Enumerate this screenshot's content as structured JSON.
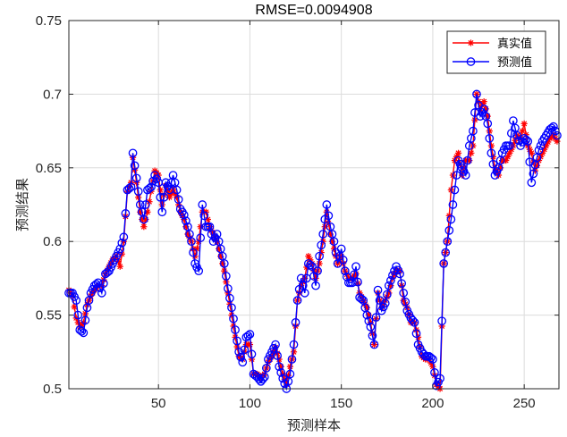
{
  "chart_data": {
    "type": "line",
    "title": "RMSE=0.0094908",
    "xlabel": "预测样本",
    "ylabel": "预测结果",
    "xlim": [
      1,
      269
    ],
    "ylim": [
      0.5,
      0.75
    ],
    "xticks": [
      50,
      100,
      150,
      200,
      250
    ],
    "yticks": [
      0.5,
      0.55,
      0.6,
      0.65,
      0.7,
      0.75
    ],
    "xtick_labels": [
      "50",
      "100",
      "150",
      "200",
      "250"
    ],
    "ytick_labels": [
      "0.5",
      "0.55",
      "0.6",
      "0.65",
      "0.7",
      "0.75"
    ],
    "grid": true,
    "legend_position": "top-right",
    "series": [
      {
        "name": "真实值",
        "color": "#ff0000",
        "marker": "asterisk",
        "keypoints": [
          [
            1,
            0.567
          ],
          [
            3,
            0.563
          ],
          [
            5,
            0.548
          ],
          [
            7,
            0.542
          ],
          [
            9,
            0.545
          ],
          [
            11,
            0.557
          ],
          [
            13,
            0.563
          ],
          [
            15,
            0.567
          ],
          [
            17,
            0.57
          ],
          [
            19,
            0.57
          ],
          [
            21,
            0.578
          ],
          [
            23,
            0.583
          ],
          [
            25,
            0.588
          ],
          [
            27,
            0.59
          ],
          [
            29,
            0.583
          ],
          [
            31,
            0.6
          ],
          [
            33,
            0.634
          ],
          [
            35,
            0.64
          ],
          [
            36,
            0.657
          ],
          [
            38,
            0.64
          ],
          [
            40,
            0.62
          ],
          [
            42,
            0.61
          ],
          [
            44,
            0.62
          ],
          [
            46,
            0.634
          ],
          [
            48,
            0.648
          ],
          [
            50,
            0.645
          ],
          [
            52,
            0.625
          ],
          [
            54,
            0.638
          ],
          [
            56,
            0.63
          ],
          [
            58,
            0.635
          ],
          [
            60,
            0.63
          ],
          [
            62,
            0.62
          ],
          [
            64,
            0.615
          ],
          [
            66,
            0.605
          ],
          [
            68,
            0.6
          ],
          [
            70,
            0.59
          ],
          [
            72,
            0.6
          ],
          [
            74,
            0.62
          ],
          [
            76,
            0.62
          ],
          [
            78,
            0.61
          ],
          [
            80,
            0.605
          ],
          [
            82,
            0.6
          ],
          [
            84,
            0.59
          ],
          [
            86,
            0.58
          ],
          [
            88,
            0.565
          ],
          [
            90,
            0.55
          ],
          [
            92,
            0.535
          ],
          [
            94,
            0.522
          ],
          [
            96,
            0.52
          ],
          [
            98,
            0.53
          ],
          [
            100,
            0.53
          ],
          [
            102,
            0.51
          ],
          [
            104,
            0.51
          ],
          [
            106,
            0.508
          ],
          [
            108,
            0.51
          ],
          [
            110,
            0.518
          ],
          [
            112,
            0.522
          ],
          [
            114,
            0.528
          ],
          [
            116,
            0.52
          ],
          [
            118,
            0.51
          ],
          [
            120,
            0.503
          ],
          [
            122,
            0.515
          ],
          [
            124,
            0.525
          ],
          [
            126,
            0.56
          ],
          [
            128,
            0.57
          ],
          [
            130,
            0.575
          ],
          [
            132,
            0.59
          ],
          [
            134,
            0.585
          ],
          [
            136,
            0.575
          ],
          [
            138,
            0.585
          ],
          [
            140,
            0.6
          ],
          [
            142,
            0.62
          ],
          [
            144,
            0.605
          ],
          [
            146,
            0.595
          ],
          [
            148,
            0.585
          ],
          [
            150,
            0.59
          ],
          [
            152,
            0.58
          ],
          [
            154,
            0.575
          ],
          [
            156,
            0.575
          ],
          [
            158,
            0.578
          ],
          [
            160,
            0.565
          ],
          [
            162,
            0.56
          ],
          [
            164,
            0.555
          ],
          [
            166,
            0.545
          ],
          [
            168,
            0.53
          ],
          [
            170,
            0.565
          ],
          [
            172,
            0.555
          ],
          [
            174,
            0.56
          ],
          [
            176,
            0.565
          ],
          [
            178,
            0.575
          ],
          [
            180,
            0.58
          ],
          [
            182,
            0.58
          ],
          [
            184,
            0.56
          ],
          [
            186,
            0.555
          ],
          [
            188,
            0.545
          ],
          [
            190,
            0.545
          ],
          [
            192,
            0.535
          ],
          [
            194,
            0.522
          ],
          [
            196,
            0.52
          ],
          [
            198,
            0.52
          ],
          [
            200,
            0.515
          ],
          [
            202,
            0.503
          ],
          [
            204,
            0.5
          ],
          [
            206,
            0.585
          ],
          [
            208,
            0.6
          ],
          [
            210,
            0.635
          ],
          [
            212,
            0.655
          ],
          [
            214,
            0.66
          ],
          [
            216,
            0.645
          ],
          [
            218,
            0.655
          ],
          [
            220,
            0.655
          ],
          [
            222,
            0.665
          ],
          [
            224,
            0.7
          ],
          [
            226,
            0.69
          ],
          [
            228,
            0.695
          ],
          [
            230,
            0.685
          ],
          [
            232,
            0.665
          ],
          [
            234,
            0.65
          ],
          [
            236,
            0.645
          ],
          [
            238,
            0.655
          ],
          [
            240,
            0.655
          ],
          [
            242,
            0.66
          ],
          [
            244,
            0.665
          ],
          [
            246,
            0.672
          ],
          [
            248,
            0.67
          ],
          [
            250,
            0.68
          ],
          [
            252,
            0.665
          ],
          [
            254,
            0.66
          ],
          [
            256,
            0.648
          ],
          [
            258,
            0.655
          ],
          [
            260,
            0.66
          ],
          [
            262,
            0.665
          ],
          [
            264,
            0.67
          ],
          [
            266,
            0.672
          ],
          [
            268,
            0.668
          ]
        ]
      },
      {
        "name": "预测值",
        "color": "#0000ff",
        "marker": "circle",
        "keypoints": [
          [
            1,
            0.565
          ],
          [
            3,
            0.565
          ],
          [
            5,
            0.56
          ],
          [
            7,
            0.54
          ],
          [
            9,
            0.538
          ],
          [
            11,
            0.555
          ],
          [
            13,
            0.565
          ],
          [
            15,
            0.57
          ],
          [
            17,
            0.572
          ],
          [
            19,
            0.565
          ],
          [
            21,
            0.578
          ],
          [
            23,
            0.58
          ],
          [
            25,
            0.585
          ],
          [
            27,
            0.59
          ],
          [
            29,
            0.595
          ],
          [
            31,
            0.603
          ],
          [
            33,
            0.635
          ],
          [
            35,
            0.637
          ],
          [
            36,
            0.66
          ],
          [
            38,
            0.643
          ],
          [
            40,
            0.625
          ],
          [
            42,
            0.615
          ],
          [
            44,
            0.635
          ],
          [
            46,
            0.637
          ],
          [
            48,
            0.645
          ],
          [
            50,
            0.64
          ],
          [
            52,
            0.62
          ],
          [
            54,
            0.64
          ],
          [
            56,
            0.635
          ],
          [
            58,
            0.645
          ],
          [
            60,
            0.635
          ],
          [
            62,
            0.622
          ],
          [
            64,
            0.618
          ],
          [
            66,
            0.61
          ],
          [
            68,
            0.6
          ],
          [
            70,
            0.585
          ],
          [
            72,
            0.58
          ],
          [
            74,
            0.625
          ],
          [
            76,
            0.61
          ],
          [
            78,
            0.61
          ],
          [
            80,
            0.6
          ],
          [
            82,
            0.605
          ],
          [
            84,
            0.595
          ],
          [
            86,
            0.585
          ],
          [
            88,
            0.568
          ],
          [
            90,
            0.555
          ],
          [
            92,
            0.54
          ],
          [
            94,
            0.525
          ],
          [
            96,
            0.518
          ],
          [
            98,
            0.535
          ],
          [
            100,
            0.537
          ],
          [
            102,
            0.51
          ],
          [
            104,
            0.508
          ],
          [
            106,
            0.505
          ],
          [
            108,
            0.508
          ],
          [
            110,
            0.52
          ],
          [
            112,
            0.525
          ],
          [
            114,
            0.53
          ],
          [
            116,
            0.515
          ],
          [
            118,
            0.507
          ],
          [
            120,
            0.5
          ],
          [
            122,
            0.51
          ],
          [
            124,
            0.53
          ],
          [
            126,
            0.56
          ],
          [
            128,
            0.575
          ],
          [
            130,
            0.565
          ],
          [
            132,
            0.585
          ],
          [
            134,
            0.583
          ],
          [
            136,
            0.57
          ],
          [
            138,
            0.59
          ],
          [
            140,
            0.605
          ],
          [
            142,
            0.625
          ],
          [
            144,
            0.61
          ],
          [
            146,
            0.6
          ],
          [
            148,
            0.585
          ],
          [
            150,
            0.595
          ],
          [
            152,
            0.58
          ],
          [
            154,
            0.572
          ],
          [
            156,
            0.572
          ],
          [
            158,
            0.583
          ],
          [
            160,
            0.562
          ],
          [
            162,
            0.56
          ],
          [
            164,
            0.55
          ],
          [
            166,
            0.542
          ],
          [
            168,
            0.53
          ],
          [
            170,
            0.567
          ],
          [
            172,
            0.553
          ],
          [
            174,
            0.558
          ],
          [
            176,
            0.57
          ],
          [
            178,
            0.577
          ],
          [
            180,
            0.583
          ],
          [
            182,
            0.578
          ],
          [
            184,
            0.565
          ],
          [
            186,
            0.553
          ],
          [
            188,
            0.548
          ],
          [
            190,
            0.545
          ],
          [
            192,
            0.53
          ],
          [
            194,
            0.525
          ],
          [
            196,
            0.522
          ],
          [
            198,
            0.522
          ],
          [
            200,
            0.52
          ],
          [
            202,
            0.502
          ],
          [
            204,
            0.507
          ],
          [
            206,
            0.585
          ],
          [
            208,
            0.6
          ],
          [
            210,
            0.615
          ],
          [
            212,
            0.635
          ],
          [
            214,
            0.655
          ],
          [
            216,
            0.65
          ],
          [
            218,
            0.645
          ],
          [
            220,
            0.665
          ],
          [
            222,
            0.675
          ],
          [
            224,
            0.7
          ],
          [
            226,
            0.685
          ],
          [
            228,
            0.69
          ],
          [
            230,
            0.68
          ],
          [
            232,
            0.66
          ],
          [
            234,
            0.645
          ],
          [
            236,
            0.65
          ],
          [
            238,
            0.66
          ],
          [
            240,
            0.665
          ],
          [
            242,
            0.665
          ],
          [
            244,
            0.682
          ],
          [
            246,
            0.672
          ],
          [
            248,
            0.665
          ],
          [
            250,
            0.67
          ],
          [
            252,
            0.668
          ],
          [
            254,
            0.64
          ],
          [
            256,
            0.652
          ],
          [
            258,
            0.662
          ],
          [
            260,
            0.668
          ],
          [
            262,
            0.672
          ],
          [
            264,
            0.676
          ],
          [
            266,
            0.678
          ],
          [
            268,
            0.672
          ]
        ]
      }
    ]
  }
}
